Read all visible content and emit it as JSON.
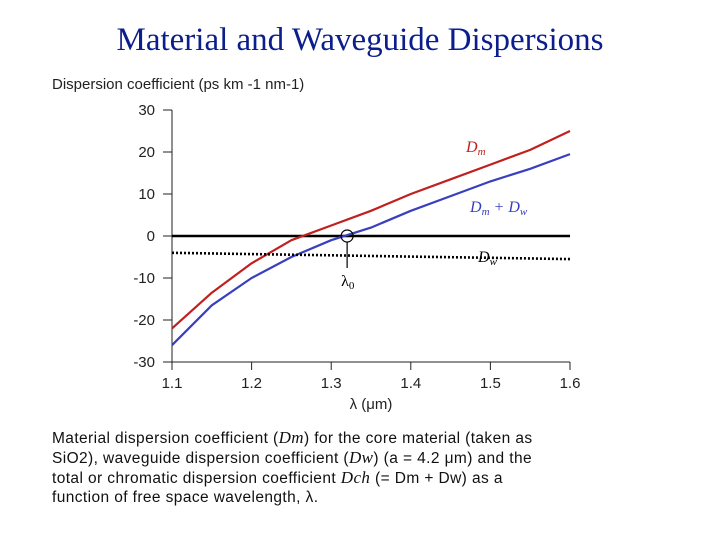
{
  "title": "Material and Waveguide  Dispersions",
  "colors": {
    "title": "#0b1e8c",
    "Dm": "#c0201e",
    "sum": "#3a3fbd",
    "Dw": "#000000"
  },
  "chart_data": {
    "type": "line",
    "ylabel": "Dispersion coefficient (ps km -1 nm-1)",
    "xlabel": "λ (μm)",
    "xlim": [
      1.1,
      1.6
    ],
    "ylim": [
      -30,
      30
    ],
    "x_ticks": [
      1.1,
      1.2,
      1.3,
      1.4,
      1.5,
      1.6
    ],
    "y_ticks": [
      30,
      20,
      10,
      0,
      -10,
      -20,
      -30
    ],
    "x_tick_labels": [
      "1.1",
      "1.2",
      "1.3",
      "1.4",
      "1.5",
      "1.6"
    ],
    "y_tick_labels": [
      "30",
      "20",
      "10",
      "0",
      "-10",
      "-20",
      "-30"
    ],
    "zero_line": true,
    "series": [
      {
        "name": "Dm",
        "style": "solid",
        "x": [
          1.1,
          1.15,
          1.2,
          1.25,
          1.3,
          1.35,
          1.4,
          1.45,
          1.5,
          1.55,
          1.6
        ],
        "y": [
          -22,
          -13.5,
          -6.5,
          -1,
          2.5,
          6,
          10,
          13.5,
          17,
          20.5,
          25
        ]
      },
      {
        "name": "Dm + Dw",
        "style": "solid",
        "x": [
          1.1,
          1.15,
          1.2,
          1.25,
          1.3,
          1.35,
          1.4,
          1.45,
          1.5,
          1.55,
          1.6
        ],
        "y": [
          -26,
          -16.5,
          -10,
          -5,
          -1,
          2,
          6,
          9.5,
          13,
          16,
          19.5
        ]
      },
      {
        "name": "Dw",
        "style": "dotted",
        "x": [
          1.1,
          1.2,
          1.3,
          1.4,
          1.5,
          1.6
        ],
        "y": [
          -4,
          -4.3,
          -4.6,
          -4.9,
          -5.2,
          -5.5
        ]
      }
    ],
    "annotations": {
      "lambda0_label": "λ0",
      "lambda0_x": 1.32,
      "Dm_label": "Dm",
      "sum_label": "Dm + Dw",
      "Dw_label": "Dw"
    }
  },
  "caption": {
    "line1_a": "Material dispersion coefficient (",
    "line1_b": "Dm",
    "line1_c": ") for the core material (taken as",
    "line2_a": "SiO2),  waveguide dispersion coefficient (",
    "line2_b": "Dw",
    "line2_c": ") (a = 4.2 μm) and the",
    "line3_a": "total or chromatic dispersion coefficient ",
    "line3_b": "Dch",
    "line3_c": " (= Dm + Dw) as a",
    "line4": "function of  free space wavelength, λ."
  }
}
